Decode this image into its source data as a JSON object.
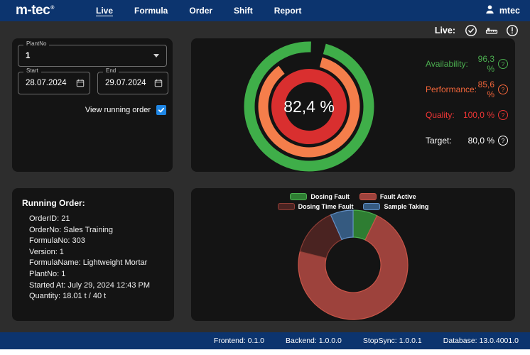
{
  "colors": {
    "navy": "#0c346e",
    "main_bg": "#2d2d2d",
    "panel": "#141414",
    "accent_blue": "#1f87e5",
    "green": "#4cb050",
    "orange": "#f4663a",
    "red": "#ef3535",
    "white": "#ffffff"
  },
  "navbar": {
    "logo": "m-tec",
    "logo_reg": "®",
    "tabs": [
      {
        "label": "Live",
        "active": true
      },
      {
        "label": "Formula",
        "active": false
      },
      {
        "label": "Order",
        "active": false
      },
      {
        "label": "Shift",
        "active": false
      },
      {
        "label": "Report",
        "active": false
      }
    ],
    "user": "mtec"
  },
  "statusbar": {
    "live_label": "Live:",
    "icons": [
      "check-circle",
      "scale-ruler",
      "alert-circle"
    ]
  },
  "filters": {
    "plantno_label": "PlantNo",
    "plantno_value": "1",
    "start_label": "Start",
    "start_value": "28.07.2024",
    "end_label": "End",
    "end_value": "29.07.2024",
    "checkbox_label": "View running order",
    "checkbox_checked": true
  },
  "metrics": [
    {
      "label": "Availability:",
      "value": "96,3 %",
      "color": "#4cb050"
    },
    {
      "label": "Performance:",
      "value": "85,6 %",
      "color": "#f4663a"
    },
    {
      "label": "Quality:",
      "value": "100,0 %",
      "color": "#ef3535"
    },
    {
      "label": "Target:",
      "value": "80,0 %",
      "color": "#ffffff"
    }
  ],
  "running_order": {
    "title": "Running Order:",
    "items": [
      "OrderID: 21",
      "OrderNo: Sales Training",
      "FormulaNo: 303",
      "Version: 1",
      "FormulaName: Lightweight Mortar",
      "PlantNo: 1",
      "Started At: July 29, 2024 12:43 PM",
      "Quantity: 18.01 t / 40 t"
    ]
  },
  "chart_data": [
    {
      "type": "donut-gauge",
      "title": "OEE gauge",
      "center_label": "82,4 %",
      "center_value": 82.4,
      "start_angle_deg": 15,
      "rings": [
        {
          "name": "Availability",
          "value": 96.3,
          "color": "#3fae49",
          "radius": 84,
          "width": 15
        },
        {
          "name": "Performance",
          "value": 85.6,
          "color": "#f57e4b",
          "radius": 64.5,
          "width": 14
        },
        {
          "name": "Quality",
          "value": 100.0,
          "color": "#d92f2f",
          "radius": 43.5,
          "width": 19
        }
      ],
      "target_percent": 80.0,
      "value_range": [
        0,
        100
      ]
    },
    {
      "type": "pie",
      "donut": true,
      "title": "Stop reasons",
      "legend_position": "top",
      "values_are_percent": true,
      "series": [
        {
          "name": "Dosing Fault",
          "value": 7.2,
          "color": "#2e7d32",
          "border": "#4caf50"
        },
        {
          "name": "Fault Active",
          "value": 71.7,
          "color": "#9d423c",
          "border": "#c85548"
        },
        {
          "name": "Dosing Time Fault",
          "value": 14.4,
          "color": "#4a2321",
          "border": "#8e3d35"
        },
        {
          "name": "Sample Taking",
          "value": 6.7,
          "color": "#355a80",
          "border": "#628fc4"
        }
      ]
    }
  ],
  "footer": {
    "items": [
      "Frontend: 0.1.0",
      "Backend: 1.0.0.0",
      "StopSync: 1.0.0.1",
      "Database: 13.0.4001.0"
    ]
  }
}
